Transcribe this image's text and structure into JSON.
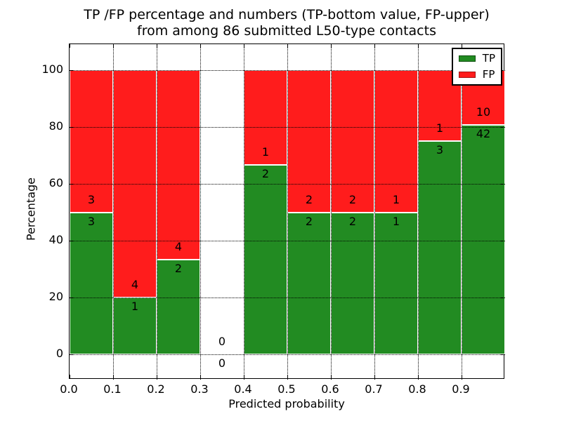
{
  "chart_data": {
    "type": "bar",
    "stacked": true,
    "title_line1": "TP /FP percentage and numbers (TP-bottom value, FP-upper)",
    "title_line2": "from among 86 submitted L50-type contacts",
    "xlabel": "Predicted probability",
    "ylabel": "Percentage",
    "total_contacts": 86,
    "bins": [
      {
        "range": "0.0-0.1",
        "tp": 3,
        "fp": 3,
        "tp_percent": 50.0
      },
      {
        "range": "0.1-0.2",
        "tp": 1,
        "fp": 4,
        "tp_percent": 20.0
      },
      {
        "range": "0.2-0.3",
        "tp": 2,
        "fp": 4,
        "tp_percent": 33.3
      },
      {
        "range": "0.3-0.4",
        "tp": 0,
        "fp": 0,
        "tp_percent": null
      },
      {
        "range": "0.4-0.5",
        "tp": 2,
        "fp": 1,
        "tp_percent": 66.7
      },
      {
        "range": "0.5-0.6",
        "tp": 2,
        "fp": 2,
        "tp_percent": 50.0
      },
      {
        "range": "0.6-0.7",
        "tp": 2,
        "fp": 2,
        "tp_percent": 50.0
      },
      {
        "range": "0.7-0.8",
        "tp": 1,
        "fp": 1,
        "tp_percent": 50.0
      },
      {
        "range": "0.8-0.9",
        "tp": 3,
        "fp": 1,
        "tp_percent": 75.0
      },
      {
        "range": "0.9-1.0",
        "tp": 42,
        "fp": 10,
        "tp_percent": 80.8
      }
    ],
    "series": [
      {
        "name": "TP",
        "color": "#228b22",
        "edge_color": "#0c4f0c"
      },
      {
        "name": "FP",
        "color": "#ff1c1c",
        "edge_color": "#a31212"
      }
    ],
    "bar_edge_color": "#ffffff",
    "x_ticks": [
      "0.0",
      "0.1",
      "0.2",
      "0.3",
      "0.4",
      "0.5",
      "0.6",
      "0.7",
      "0.8",
      "0.9"
    ],
    "y_ticks": [
      "0",
      "20",
      "40",
      "60",
      "80",
      "100"
    ],
    "xlim": [
      0.0,
      1.0
    ],
    "ylim": [
      -8.9,
      109.1
    ],
    "grid": {
      "style": "dotted",
      "color": "#000000",
      "above_bars": true
    },
    "legend": {
      "position": "upper right",
      "entries": [
        "TP",
        "FP"
      ]
    }
  }
}
